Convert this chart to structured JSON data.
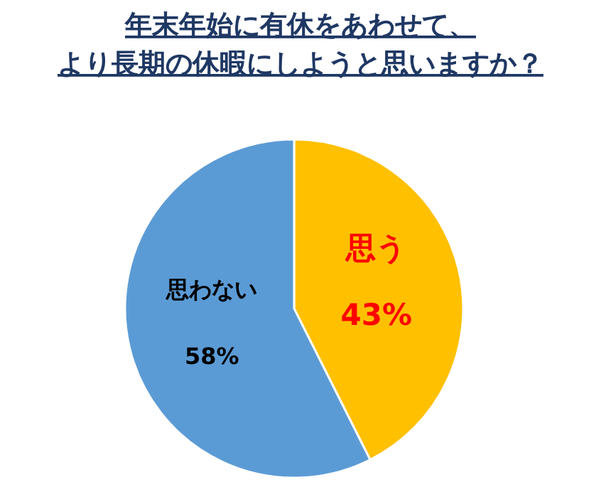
{
  "chart_data": {
    "type": "pie",
    "title": "年末年始に有休をあわせて、より長期の休暇にしようと思いますか？",
    "categories": [
      "思う",
      "思わない"
    ],
    "values": [
      43,
      58
    ],
    "colors": [
      "#ffc000",
      "#5b9bd5"
    ],
    "value_labels": [
      "43%",
      "58%"
    ],
    "legend": false
  }
}
